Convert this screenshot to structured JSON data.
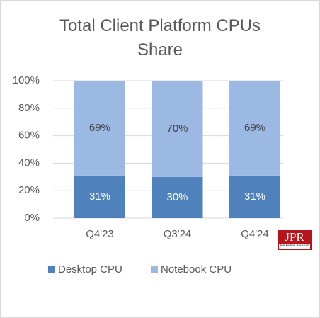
{
  "chart_data": {
    "type": "stacked_bar",
    "title": "Total Client Platform CPUs Share",
    "categories": [
      "Q4'23",
      "Q3'24",
      "Q4'24"
    ],
    "series": [
      {
        "name": "Desktop CPU",
        "color": "#4f81bd",
        "values": [
          31,
          30,
          31
        ],
        "value_labels": [
          "31%",
          "30%",
          "31%"
        ]
      },
      {
        "name": "Notebook CPU",
        "color": "#9bb9e3",
        "values": [
          69,
          70,
          69
        ],
        "value_labels": [
          "69%",
          "70%",
          "69%"
        ]
      }
    ],
    "ylim": [
      0,
      100
    ],
    "yticks": [
      {
        "value": 0,
        "label": "0%"
      },
      {
        "value": 20,
        "label": "20%"
      },
      {
        "value": 40,
        "label": "40%"
      },
      {
        "value": 60,
        "label": "60%"
      },
      {
        "value": 80,
        "label": "80%"
      },
      {
        "value": 100,
        "label": "100%"
      }
    ],
    "grid": true,
    "legend": "bottom",
    "logo_text": "JPR",
    "logo_subtext": "Jon Peddie Research"
  }
}
